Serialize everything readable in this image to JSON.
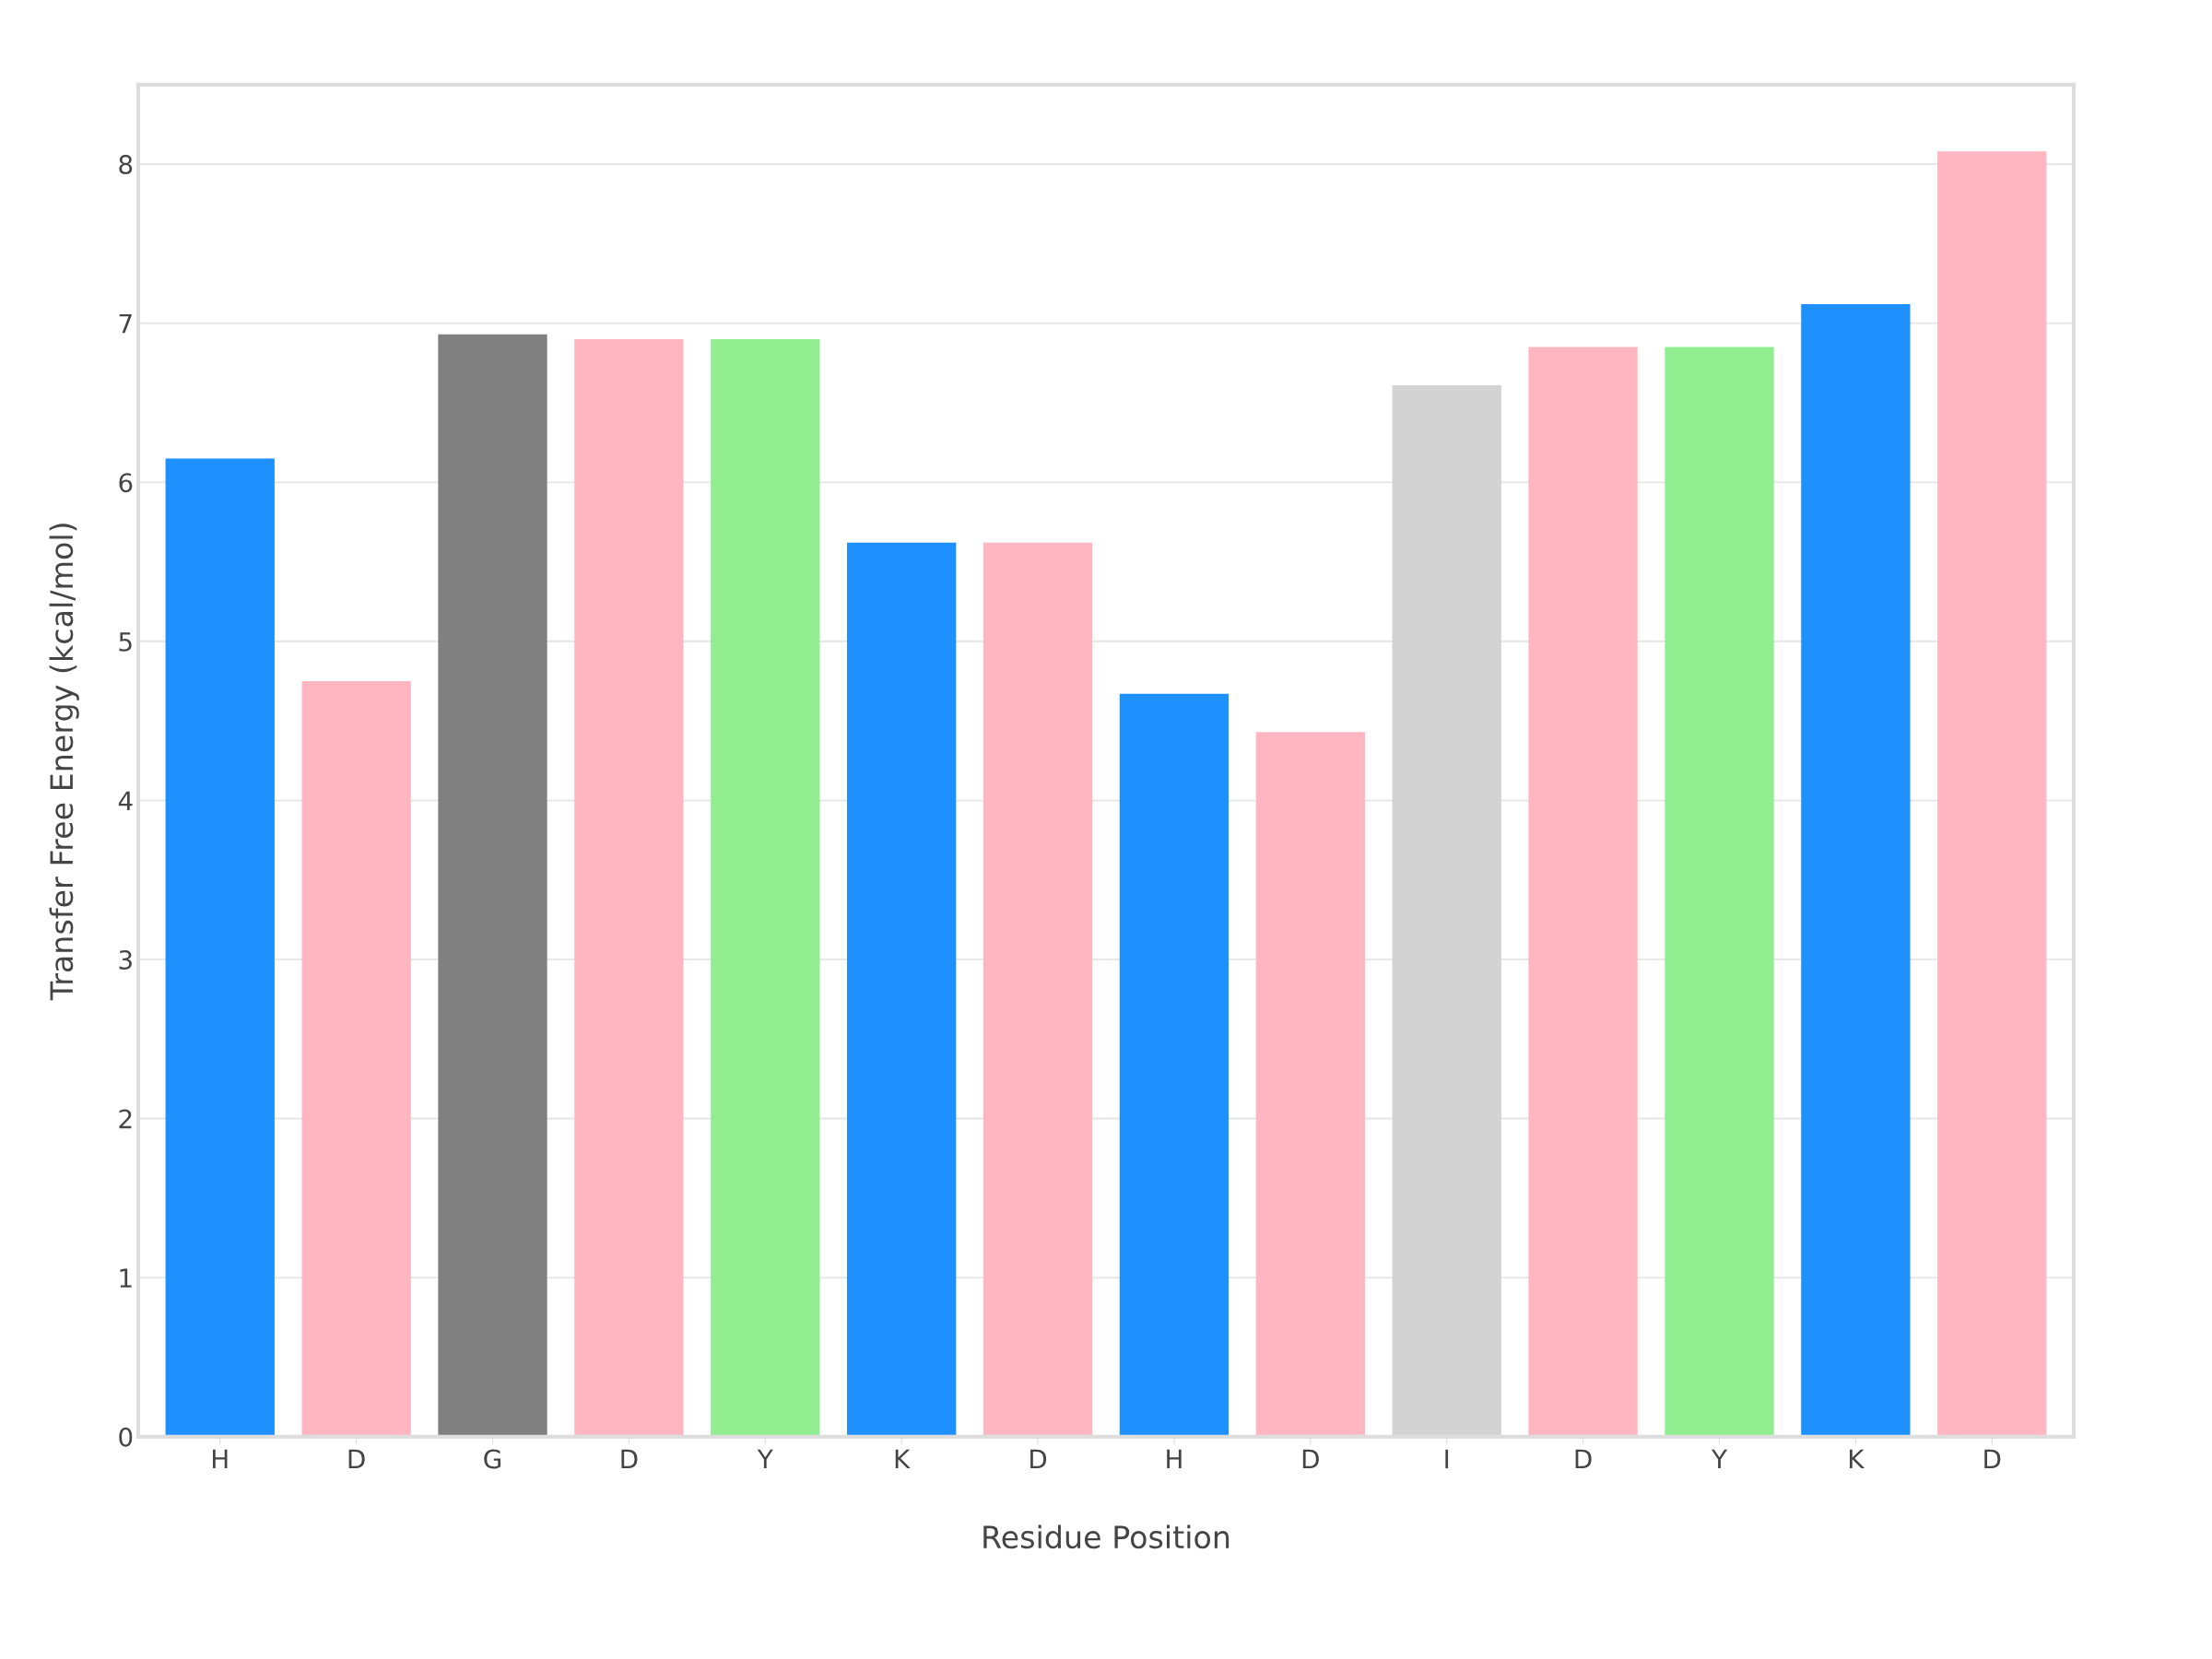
{
  "chart_data": {
    "type": "bar",
    "xlabel": "Residue Position",
    "ylabel": "Transfer Free Energy (kcal/mol)",
    "categories": [
      "H",
      "D",
      "G",
      "D",
      "Y",
      "K",
      "D",
      "H",
      "D",
      "I",
      "D",
      "Y",
      "K",
      "D"
    ],
    "values": [
      6.15,
      4.75,
      6.93,
      6.9,
      6.9,
      5.62,
      5.62,
      4.67,
      4.43,
      6.61,
      6.85,
      6.85,
      7.12,
      8.08
    ],
    "colors": [
      "#1e90ff",
      "#ffb6c1",
      "#808080",
      "#ffb6c1",
      "#90ee90",
      "#1e90ff",
      "#ffb6c1",
      "#1e90ff",
      "#ffb6c1",
      "#d3d3d3",
      "#ffb6c1",
      "#90ee90",
      "#1e90ff",
      "#ffb6c1"
    ],
    "ylim": [
      0,
      8.5
    ],
    "yticks": [
      0,
      1,
      2,
      3,
      4,
      5,
      6,
      7,
      8
    ],
    "grid": "y",
    "legend": false
  }
}
